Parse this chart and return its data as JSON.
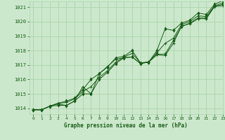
{
  "background_color": "#cce8cc",
  "grid_color": "#aad4aa",
  "line_color": "#1a5e1a",
  "title": "Graphe pression niveau de la mer (hPa)",
  "ylim": [
    1013.6,
    1021.4
  ],
  "xlim": [
    -0.5,
    23
  ],
  "yticks": [
    1014,
    1015,
    1016,
    1017,
    1018,
    1019,
    1020,
    1021
  ],
  "xticks": [
    0,
    1,
    2,
    3,
    4,
    5,
    6,
    7,
    8,
    9,
    10,
    11,
    12,
    13,
    14,
    15,
    16,
    17,
    18,
    19,
    20,
    21,
    22,
    23
  ],
  "series": [
    [
      1013.9,
      1013.9,
      1014.15,
      1014.2,
      1014.2,
      1014.5,
      1015.5,
      1015.0,
      1016.4,
      1016.9,
      1017.4,
      1017.5,
      1017.55,
      1017.1,
      1017.2,
      1017.7,
      1017.65,
      1018.5,
      1019.7,
      1019.85,
      1020.2,
      1020.2,
      1021.05,
      1021.1
    ],
    [
      1013.9,
      1013.9,
      1014.15,
      1014.3,
      1014.2,
      1014.5,
      1015.0,
      1015.0,
      1016.0,
      1016.5,
      1017.1,
      1017.5,
      1017.55,
      1017.1,
      1017.2,
      1017.75,
      1017.75,
      1018.7,
      1019.65,
      1019.9,
      1020.25,
      1020.25,
      1021.05,
      1021.2
    ],
    [
      1013.9,
      1013.9,
      1014.15,
      1014.35,
      1014.4,
      1014.65,
      1015.15,
      1015.5,
      1016.15,
      1016.6,
      1017.2,
      1017.55,
      1017.8,
      1017.15,
      1017.2,
      1017.85,
      1018.5,
      1018.85,
      1019.8,
      1020.0,
      1020.4,
      1020.35,
      1021.1,
      1021.3
    ],
    [
      1013.9,
      1013.9,
      1014.15,
      1014.35,
      1014.5,
      1014.7,
      1015.3,
      1016.0,
      1016.4,
      1016.85,
      1017.5,
      1017.6,
      1018.0,
      1017.15,
      1017.2,
      1018.0,
      1019.5,
      1019.4,
      1019.9,
      1020.1,
      1020.6,
      1020.5,
      1021.2,
      1021.45
    ]
  ],
  "marker_series": [
    0,
    1,
    2,
    3
  ],
  "no_marker_series": []
}
